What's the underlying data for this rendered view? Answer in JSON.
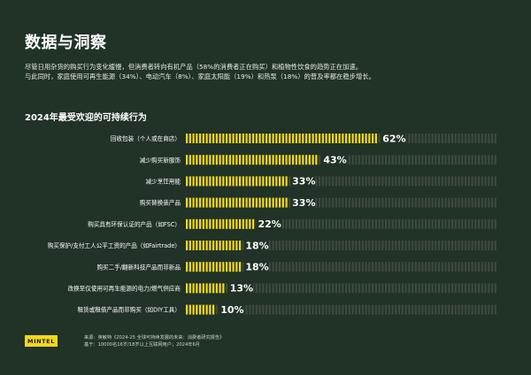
{
  "page": {
    "title": "数据与洞察",
    "intro_line1": "尽管日用杂货的购买行为变化缓慢，但消费者转向有机产品（58%的消费者正在购买）和植物性饮食的趋势正在加速。",
    "intro_line2": "与此同时，家庭使用可再生能源（34%）、电动汽车（8%）、家庭太阳能（19%）和热泵（18%）的普及率都在稳步增长。"
  },
  "chart_data": {
    "type": "bar",
    "orientation": "horizontal",
    "title": "2024年最受欢迎的可持续行为",
    "categories": [
      "回收包装（个人或在商店）",
      "减少购买新服饰",
      "减少烹饪用能",
      "购买替换装产品",
      "购买具有环保认证的产品（如FSC）",
      "购买保护/支付工人公平工资的产品（如Fairtrade）",
      "购买二手/翻新科技产品而非新品",
      "改换至仅使用可再生能源的电力/燃气供应商",
      "租赁或租借产品而非购买（如DIY工具）"
    ],
    "values": [
      62,
      43,
      33,
      33,
      22,
      18,
      18,
      13,
      10
    ],
    "value_labels": [
      "62%",
      "43%",
      "33%",
      "33%",
      "22%",
      "18%",
      "18%",
      "13%",
      "10%"
    ],
    "xlim": [
      0,
      100
    ],
    "unit": "%",
    "colors": {
      "bar": "#f5d81b",
      "track": "#3d4a3f"
    }
  },
  "brand": {
    "logo": "MINTEL"
  },
  "footer": {
    "source_line1": "来源：英敏特《2024-25 全球可持续发展的未来：消费者研究报告》",
    "source_line2": "基于：10000名16岁/18岁以上互联网用户；2024年6月"
  }
}
